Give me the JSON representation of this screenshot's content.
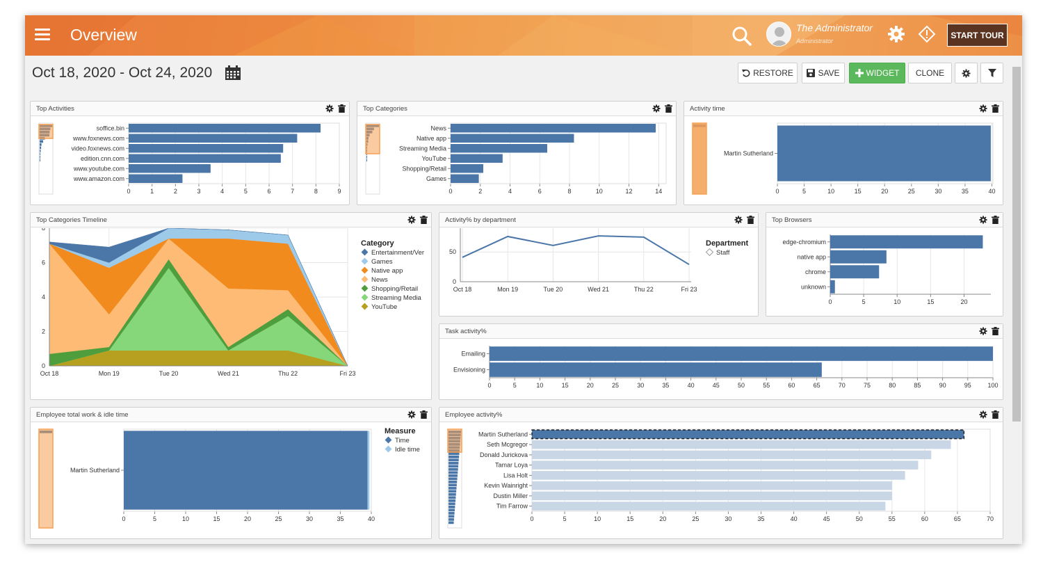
{
  "header": {
    "title": "Overview",
    "user_name": "The Administrator",
    "user_role": "Administrator",
    "tour_label": "START TOUR"
  },
  "toolbar": {
    "date_range": "Oct 18, 2020 - Oct 24, 2020",
    "restore_label": "RESTORE",
    "save_label": "SAVE",
    "widget_label": "WIDGET",
    "clone_label": "CLONE"
  },
  "colors": {
    "bar": "#4a76a8",
    "accent": "#5cb85c",
    "brush": "#f5a052"
  },
  "widgets": {
    "top_activities": "Top Activities",
    "top_categories": "Top Categories",
    "activity_time": "Activity time",
    "timeline": "Top Categories Timeline",
    "by_department": "Activity% by department",
    "top_browsers": "Top Browsers",
    "task_activity": "Task activity%",
    "work_idle": "Employee total work & idle time",
    "employee_activity": "Employee activity%"
  },
  "chart_data": [
    {
      "id": "top_activities",
      "type": "bar",
      "categories": [
        "soffice.bin",
        "www.foxnews.com",
        "video.foxnews.com",
        "edition.cnn.com",
        "www.youtube.com",
        "www.amazon.com"
      ],
      "values": [
        8.2,
        7.2,
        6.6,
        6.5,
        3.5,
        2.3
      ],
      "xticks": [
        0,
        1,
        2,
        3,
        4,
        5,
        6,
        7,
        8,
        9
      ],
      "xlim": [
        0,
        9
      ]
    },
    {
      "id": "top_categories",
      "type": "bar",
      "categories": [
        "News",
        "Native app",
        "Streaming Media",
        "YouTube",
        "Shopping/Retail",
        "Games"
      ],
      "values": [
        13.8,
        8.3,
        6.5,
        3.5,
        2.2,
        1.9
      ],
      "xticks": [
        0,
        2,
        4,
        6,
        8,
        10,
        12,
        14
      ],
      "xlim": [
        0,
        14.5
      ]
    },
    {
      "id": "activity_time",
      "type": "bar",
      "categories": [
        "Martin Sutherland"
      ],
      "values": [
        39.8
      ],
      "xticks": [
        0,
        5,
        10,
        15,
        20,
        25,
        30,
        35,
        40
      ],
      "xlim": [
        0,
        40.2
      ]
    },
    {
      "id": "timeline",
      "type": "area",
      "x": [
        "Oct 18",
        "Mon 19",
        "Tue 20",
        "Wed 21",
        "Thu 22",
        "Fri 23"
      ],
      "yticks": [
        0,
        2,
        4,
        6,
        8
      ],
      "ylim": [
        0,
        8
      ],
      "legend_title": "Category",
      "series": [
        {
          "name": "YouTube",
          "color": "#b7a020",
          "values": [
            0,
            0.9,
            0.9,
            0.9,
            0.9,
            0
          ]
        },
        {
          "name": "Streaming Media",
          "color": "#86d67a",
          "values": [
            0,
            0,
            4.8,
            0,
            2,
            0
          ]
        },
        {
          "name": "Shopping/Retail",
          "color": "#4f9e3e",
          "values": [
            0.7,
            0.2,
            0.5,
            0.2,
            0.4,
            0
          ]
        },
        {
          "name": "News",
          "color": "#fdbb75",
          "values": [
            6.4,
            1.9,
            1.2,
            3.4,
            1.1,
            0
          ]
        },
        {
          "name": "Native app",
          "color": "#f28b1d",
          "values": [
            0,
            2.7,
            0,
            2.9,
            2.7,
            0
          ]
        },
        {
          "name": "Games",
          "color": "#9ecae9",
          "values": [
            0,
            0.3,
            0.6,
            0.5,
            0.5,
            0
          ]
        },
        {
          "name": "Entertainment/Ver",
          "color": "#4a76a8",
          "values": [
            0.1,
            0.9,
            0,
            0,
            0,
            0
          ]
        }
      ]
    },
    {
      "id": "by_department",
      "type": "line",
      "x": [
        "Oct 18",
        "Mon 19",
        "Tue 20",
        "Wed 21",
        "Thu 22",
        "Fri 23"
      ],
      "yticks": [
        0,
        50
      ],
      "ylim": [
        0,
        90
      ],
      "legend_title": "Department",
      "series": [
        {
          "name": "Staff",
          "values": [
            41,
            76,
            61,
            77,
            75,
            29
          ]
        }
      ]
    },
    {
      "id": "top_browsers",
      "type": "bar",
      "categories": [
        "edge-chromium",
        "native app",
        "chrome",
        "unknown"
      ],
      "values": [
        22.8,
        8.4,
        7.3,
        0.7
      ],
      "xticks": [
        0,
        5,
        10,
        15,
        20
      ],
      "xlim": [
        0,
        24
      ]
    },
    {
      "id": "task_activity",
      "type": "bar",
      "categories": [
        "Emailing",
        "Envisioning"
      ],
      "values": [
        100,
        66
      ],
      "xticks": [
        0,
        5,
        10,
        15,
        20,
        25,
        30,
        35,
        40,
        45,
        50,
        55,
        60,
        65,
        70,
        75,
        80,
        85,
        90,
        95,
        100
      ],
      "xlim": [
        0,
        100
      ]
    },
    {
      "id": "work_idle",
      "type": "bar",
      "categories": [
        "Martin Sutherland"
      ],
      "legend_title": "Measure",
      "series": [
        {
          "name": "Time",
          "values": [
            39.4
          ]
        },
        {
          "name": "Idle time",
          "values": [
            0.3
          ]
        }
      ],
      "xticks": [
        0,
        5,
        10,
        15,
        20,
        25,
        30,
        35,
        40
      ],
      "xlim": [
        0,
        40
      ]
    },
    {
      "id": "employee_activity",
      "type": "bar",
      "categories": [
        "Martin Sutherland",
        "Seth Mcgregor",
        "Donald Jurickova",
        "Tamar Loya",
        "Lisa Holt",
        "Kevin Wainright",
        "Dustin Miller",
        "Tim Farrow"
      ],
      "values": [
        66,
        64,
        61,
        59,
        57,
        55,
        55,
        54
      ],
      "xticks": [
        0,
        5,
        10,
        15,
        20,
        25,
        30,
        35,
        40,
        45,
        50,
        55,
        60,
        65,
        70
      ],
      "xlim": [
        0,
        70
      ]
    }
  ]
}
